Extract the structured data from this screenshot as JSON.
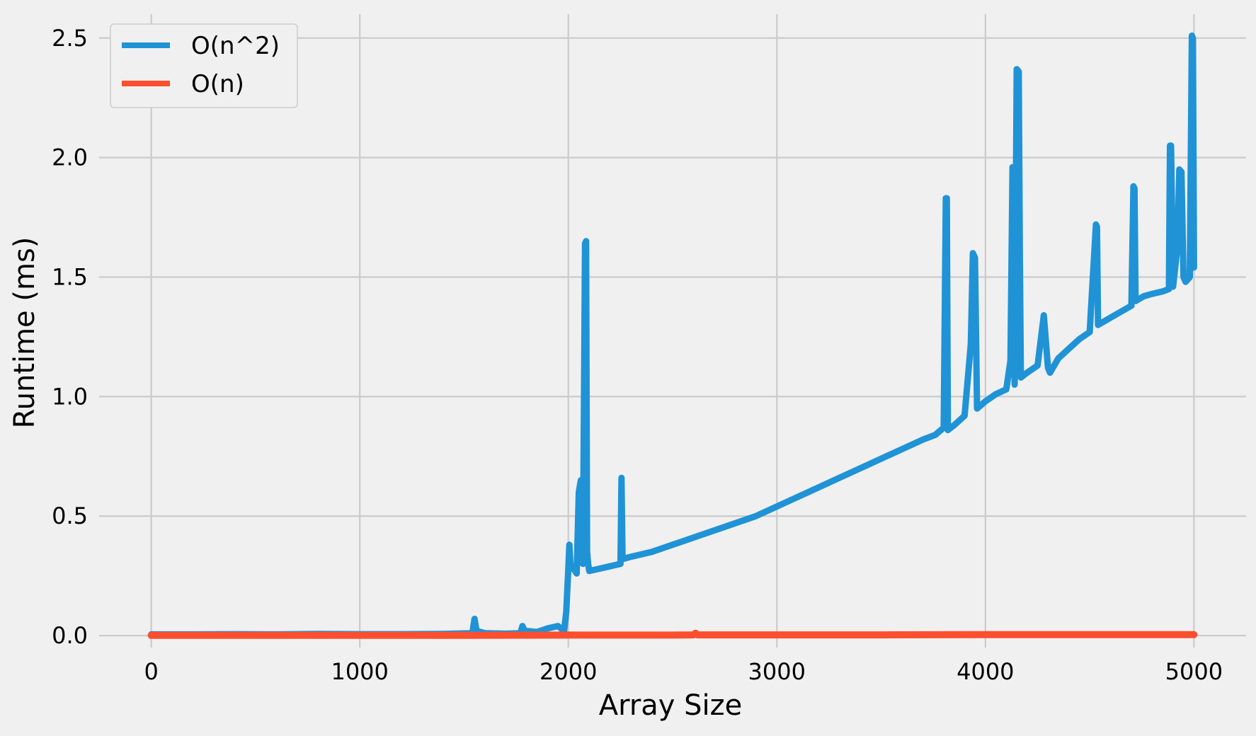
{
  "chart_data": {
    "type": "line",
    "title": "",
    "xlabel": "Array Size",
    "ylabel": "Runtime (ms)",
    "xlim": [
      -250,
      5250
    ],
    "ylim": [
      -0.05,
      2.6
    ],
    "x_ticks": [
      0,
      1000,
      2000,
      3000,
      4000,
      5000
    ],
    "x_tick_labels": [
      "0",
      "1000",
      "2000",
      "3000",
      "4000",
      "5000"
    ],
    "y_ticks": [
      0.0,
      0.5,
      1.0,
      1.5,
      2.0,
      2.5
    ],
    "y_tick_labels": [
      "0.0",
      "0.5",
      "1.0",
      "1.5",
      "2.0",
      "2.5"
    ],
    "grid": true,
    "legend_position": "top-left",
    "series": [
      {
        "name": "O(n^2)",
        "color": "#1f93d6",
        "x": [
          0,
          200,
          400,
          600,
          800,
          1000,
          1200,
          1400,
          1540,
          1550,
          1560,
          1600,
          1700,
          1770,
          1780,
          1790,
          1850,
          1900,
          1950,
          1980,
          1990,
          2000,
          2005,
          2010,
          2040,
          2050,
          2060,
          2070,
          2080,
          2085,
          2090,
          2095,
          2100,
          2150,
          2200,
          2250,
          2255,
          2260,
          2300,
          2400,
          2500,
          2600,
          2700,
          2800,
          2900,
          3000,
          3100,
          3200,
          3300,
          3400,
          3500,
          3600,
          3700,
          3760,
          3800,
          3810,
          3815,
          3820,
          3850,
          3900,
          3930,
          3940,
          3950,
          3960,
          4000,
          4050,
          4100,
          4120,
          4130,
          4140,
          4150,
          4160,
          4165,
          4170,
          4200,
          4250,
          4280,
          4300,
          4310,
          4350,
          4400,
          4450,
          4500,
          4530,
          4535,
          4540,
          4600,
          4700,
          4710,
          4715,
          4720,
          4760,
          4800,
          4850,
          4880,
          4885,
          4890,
          4900,
          4920,
          4930,
          4940,
          4950,
          4960,
          4980,
          4990,
          4995,
          5000
        ],
        "values": [
          0.005,
          0.005,
          0.006,
          0.005,
          0.007,
          0.006,
          0.006,
          0.007,
          0.01,
          0.07,
          0.02,
          0.01,
          0.008,
          0.01,
          0.04,
          0.02,
          0.015,
          0.03,
          0.04,
          0.02,
          0.1,
          0.28,
          0.38,
          0.3,
          0.26,
          0.6,
          0.65,
          0.3,
          1.64,
          1.65,
          0.35,
          0.3,
          0.27,
          0.28,
          0.29,
          0.3,
          0.66,
          0.32,
          0.33,
          0.35,
          0.38,
          0.41,
          0.44,
          0.47,
          0.5,
          0.54,
          0.58,
          0.62,
          0.66,
          0.7,
          0.74,
          0.78,
          0.82,
          0.84,
          0.87,
          1.83,
          1.83,
          0.86,
          0.88,
          0.92,
          1.22,
          1.6,
          1.58,
          0.95,
          0.98,
          1.01,
          1.03,
          1.15,
          1.96,
          1.05,
          2.37,
          2.36,
          1.6,
          1.08,
          1.1,
          1.13,
          1.34,
          1.12,
          1.1,
          1.16,
          1.2,
          1.24,
          1.27,
          1.72,
          1.71,
          1.3,
          1.33,
          1.38,
          1.88,
          1.87,
          1.4,
          1.42,
          1.43,
          1.44,
          1.45,
          2.05,
          2.05,
          1.46,
          1.62,
          1.95,
          1.94,
          1.5,
          1.48,
          1.5,
          2.51,
          2.5,
          1.54
        ]
      },
      {
        "name": "O(n)",
        "color": "#fc4f30",
        "x": [
          0,
          500,
          1000,
          1500,
          2000,
          2500,
          2600,
          2610,
          2620,
          3000,
          3500,
          4000,
          4500,
          5000
        ],
        "values": [
          0.001,
          0.001,
          0.001,
          0.001,
          0.002,
          0.002,
          0.003,
          0.01,
          0.003,
          0.003,
          0.003,
          0.004,
          0.004,
          0.004
        ]
      }
    ]
  }
}
